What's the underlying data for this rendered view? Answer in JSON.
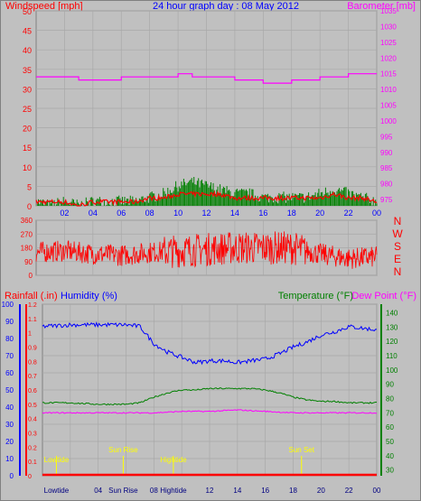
{
  "colors": {
    "background": "#c0c0c0",
    "border": "#808080",
    "grid": "#a8a8a8",
    "wind": "#ff0000",
    "gust": "#008000",
    "barometer": "#ff00ff",
    "title": "#0000ff",
    "rainfall": "#ff0000",
    "humidity": "#0000ff",
    "temperature": "#008000",
    "dewpoint": "#ff00ff",
    "marker": "#ffff00"
  },
  "header": {
    "left": "Windspeed [mph]",
    "center": "24 hour graph day : 08 May 2012",
    "right": "Barometer [mb]"
  },
  "chart_data": [
    {
      "type": "line",
      "id": "wind-baro",
      "x_ticks": [
        "02",
        "04",
        "06",
        "08",
        "10",
        "12",
        "14",
        "16",
        "18",
        "20",
        "22",
        "00"
      ],
      "y_left": {
        "label": "Windspeed [mph]",
        "range": [
          0,
          50
        ],
        "ticks": [
          0,
          5,
          10,
          15,
          20,
          25,
          30,
          35,
          40,
          45,
          50
        ]
      },
      "y_right": {
        "label": "Barometer [mb]",
        "range": [
          973,
          1035
        ],
        "ticks": [
          975,
          980,
          985,
          990,
          995,
          1000,
          1005,
          1010,
          1015,
          1020,
          1025,
          1030,
          1035
        ]
      },
      "series": [
        {
          "name": "Windspeed",
          "color": "#ff0000",
          "hours": [
            0,
            1,
            2,
            3,
            4,
            5,
            6,
            7,
            8,
            9,
            10,
            11,
            12,
            13,
            14,
            15,
            16,
            17,
            18,
            19,
            20,
            21,
            22,
            23,
            24
          ],
          "values": [
            1,
            1,
            1,
            0,
            1,
            1,
            1,
            1,
            2,
            2,
            3,
            3,
            3,
            3,
            2,
            2,
            2,
            2,
            2,
            2,
            2,
            3,
            2,
            2,
            1
          ]
        },
        {
          "name": "Wind Gust",
          "color": "#008000",
          "hours": [
            0,
            1,
            2,
            3,
            4,
            5,
            6,
            7,
            8,
            9,
            10,
            11,
            12,
            13,
            14,
            15,
            16,
            17,
            18,
            19,
            20,
            21,
            22,
            23,
            24
          ],
          "values": [
            1,
            0,
            1,
            0,
            1,
            1,
            1,
            1,
            2,
            3,
            5,
            6,
            5,
            4,
            3,
            3,
            2,
            2,
            2,
            2,
            3,
            4,
            3,
            2,
            1
          ]
        },
        {
          "name": "Barometer",
          "color": "#ff00ff",
          "steps": [
            [
              0,
              1014
            ],
            [
              3,
              1013
            ],
            [
              6,
              1014
            ],
            [
              10,
              1015
            ],
            [
              11,
              1014
            ],
            [
              14,
              1013
            ],
            [
              16,
              1012
            ],
            [
              18,
              1013
            ],
            [
              20,
              1014
            ],
            [
              22,
              1015
            ],
            [
              24,
              1015
            ]
          ]
        }
      ]
    },
    {
      "type": "line",
      "id": "wind-direction",
      "x_ticks": [
        "02",
        "04",
        "06",
        "08",
        "10",
        "12",
        "14",
        "16",
        "18",
        "20",
        "22",
        "00"
      ],
      "y": {
        "range": [
          0,
          360
        ],
        "ticks": [
          0,
          90,
          180,
          270,
          360
        ]
      },
      "compass": [
        "N",
        "W",
        "S",
        "E",
        "N"
      ],
      "series": [
        {
          "name": "Wind Direction",
          "color": "#ff0000",
          "hours": [
            0,
            2,
            4,
            6,
            8,
            10,
            12,
            14,
            16,
            18,
            20,
            22,
            24
          ],
          "values": [
            150,
            160,
            140,
            130,
            150,
            160,
            170,
            180,
            180,
            180,
            140,
            110,
            120
          ]
        }
      ]
    },
    {
      "type": "line",
      "id": "rain-hum-temp",
      "x_ticks": [
        "Lowtide",
        "04",
        "Sun Rise",
        "08",
        "Hightide",
        "12",
        "14",
        "16",
        "18",
        "20",
        "22",
        "00"
      ],
      "y_rain": {
        "label": "Rainfall (.in)",
        "range": [
          0,
          1.2
        ],
        "ticks": [
          "0",
          "0.1",
          "0.2",
          "0.3",
          "0.4",
          "0.5",
          "0.6",
          "0.7",
          "0.8",
          "0.9",
          "1",
          "1.1",
          "1.2"
        ]
      },
      "y_humidity": {
        "label": "Humidity (%)",
        "range": [
          0,
          100
        ],
        "ticks": [
          0,
          10,
          20,
          30,
          40,
          50,
          60,
          70,
          80,
          90,
          100
        ]
      },
      "y_temp": {
        "label": "Temperature (°F)",
        "range": [
          26,
          146
        ],
        "ticks": [
          30,
          40,
          50,
          60,
          70,
          80,
          90,
          100,
          110,
          120,
          130,
          140
        ]
      },
      "dewpoint_label": "Dew Point (°F)",
      "events": [
        {
          "label": "Lowtide",
          "hour": 1.0
        },
        {
          "label": "Sun Rise",
          "hour": 5.8
        },
        {
          "label": "Hightide",
          "hour": 9.4
        },
        {
          "label": "Sun Set",
          "hour": 18.6
        }
      ],
      "series": [
        {
          "name": "Humidity",
          "color": "#0000ff",
          "hours": [
            0,
            2,
            4,
            6,
            7,
            8,
            9,
            10,
            11,
            12,
            13,
            14,
            15,
            16,
            17,
            18,
            19,
            20,
            21,
            22,
            23,
            24
          ],
          "values": [
            87,
            88,
            88,
            88,
            87,
            77,
            72,
            69,
            66,
            67,
            67,
            66,
            67,
            68,
            71,
            75,
            78,
            82,
            84,
            87,
            86,
            85
          ]
        },
        {
          "name": "Temperature",
          "color": "#008000",
          "hours": [
            0,
            2,
            4,
            6,
            7,
            8,
            9,
            10,
            11,
            12,
            13,
            14,
            15,
            16,
            17,
            18,
            19,
            20,
            21,
            22,
            23,
            24
          ],
          "values": [
            77,
            77,
            76,
            76,
            77,
            81,
            84,
            86,
            86,
            87,
            87,
            87,
            87,
            86,
            84,
            81,
            79,
            78,
            78,
            77,
            77,
            77
          ]
        },
        {
          "name": "Dew Point",
          "color": "#ff00ff",
          "hours": [
            0,
            4,
            8,
            10,
            12,
            14,
            16,
            18,
            20,
            22,
            24
          ],
          "values": [
            70,
            70,
            70,
            71,
            71,
            72,
            71,
            70,
            70,
            70,
            70
          ]
        },
        {
          "name": "Rainfall",
          "color": "#ff0000",
          "hours": [
            0,
            24
          ],
          "values": [
            0,
            0
          ]
        }
      ]
    }
  ]
}
